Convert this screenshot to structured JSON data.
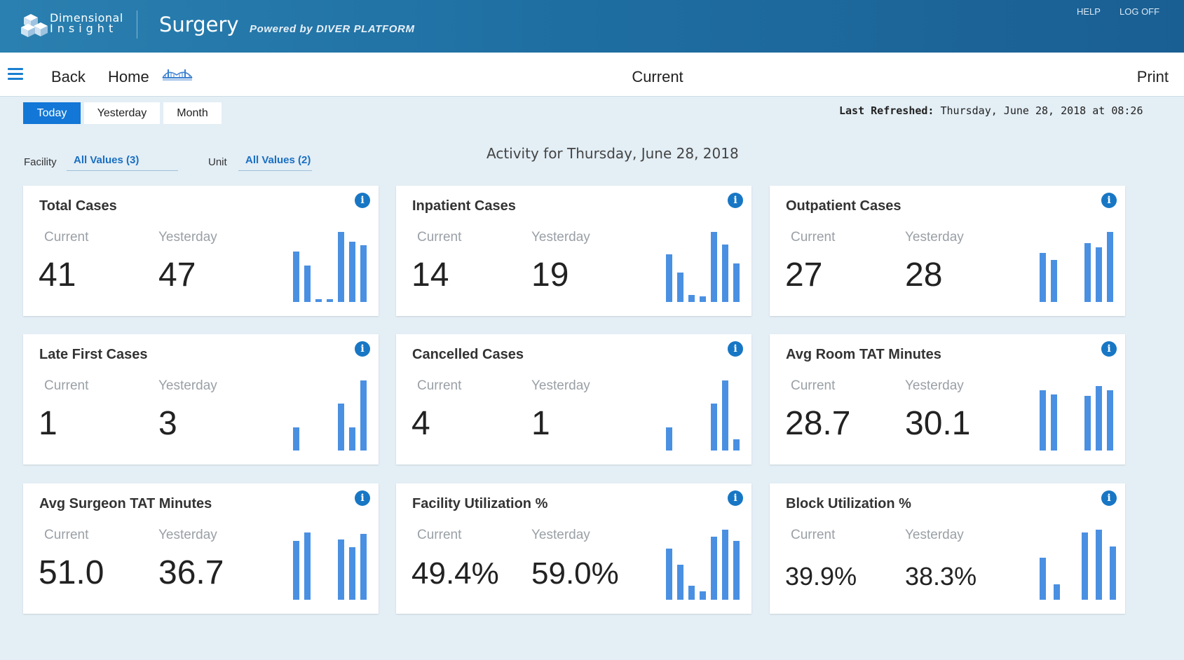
{
  "header": {
    "brand_line1": "Dimensional",
    "brand_line2": "Insight",
    "app_title": "Surgery",
    "powered_by": "Powered by DIVER PLATFORM",
    "help": "HELP",
    "log_off": "LOG OFF"
  },
  "nav": {
    "back": "Back",
    "home": "Home",
    "title": "Current",
    "print": "Print"
  },
  "periods": {
    "today": "Today",
    "yesterday": "Yesterday",
    "month": "Month",
    "active": "Today"
  },
  "last_refreshed": {
    "label": "Last Refreshed:",
    "value": "Thursday, June 28, 2018 at 08:26"
  },
  "activity_title": "Activity for Thursday, June 28, 2018",
  "filters": {
    "facility_label": "Facility",
    "facility_value": "All Values (3)",
    "unit_label": "Unit",
    "unit_value": "All Values (2)"
  },
  "card_labels": {
    "current": "Current",
    "yesterday": "Yesterday"
  },
  "colors": {
    "accent": "#1277d6",
    "bars": "#4a90e2",
    "header": "#1f6fa3"
  },
  "cards": [
    {
      "title": "Total Cases",
      "current": "41",
      "yesterday": "47",
      "bars": [
        0.72,
        0.52,
        0.04,
        0.04,
        1.0,
        0.86,
        0.81
      ]
    },
    {
      "title": "Inpatient Cases",
      "current": "14",
      "yesterday": "19",
      "bars": [
        0.68,
        0.42,
        0.1,
        0.08,
        1.0,
        0.82,
        0.55
      ]
    },
    {
      "title": "Outpatient Cases",
      "current": "27",
      "yesterday": "28",
      "bars": [
        0.7,
        0.6,
        0,
        0,
        0.84,
        0.78,
        1.0
      ]
    },
    {
      "title": "Late First Cases",
      "current": "1",
      "yesterday": "3",
      "bars": [
        0.33,
        0,
        0,
        0,
        0.67,
        0.33,
        1.0
      ]
    },
    {
      "title": "Cancelled Cases",
      "current": "4",
      "yesterday": "1",
      "bars": [
        0.33,
        0,
        0,
        0,
        0.67,
        1.0,
        0.16
      ]
    },
    {
      "title": "Avg Room TAT Minutes",
      "current": "28.7",
      "yesterday": "30.1",
      "bars": [
        0.86,
        0.8,
        0,
        0,
        0.78,
        0.92,
        0.86
      ]
    },
    {
      "title": "Avg Surgeon TAT Minutes",
      "current": "51.0",
      "yesterday": "36.7",
      "bars": [
        0.84,
        0.96,
        0,
        0,
        0.86,
        0.75,
        0.94
      ]
    },
    {
      "title": "Facility Utilization %",
      "current": "49.4%",
      "yesterday": "59.0%",
      "bars": [
        0.73,
        0.5,
        0.2,
        0.12,
        0.9,
        1.0,
        0.84
      ]
    },
    {
      "title": "Block Utilization %",
      "current": "39.9%",
      "yesterday": "38.3%",
      "bars": [
        0.6,
        0.22,
        0,
        0.96,
        1.0,
        0.76
      ]
    }
  ]
}
